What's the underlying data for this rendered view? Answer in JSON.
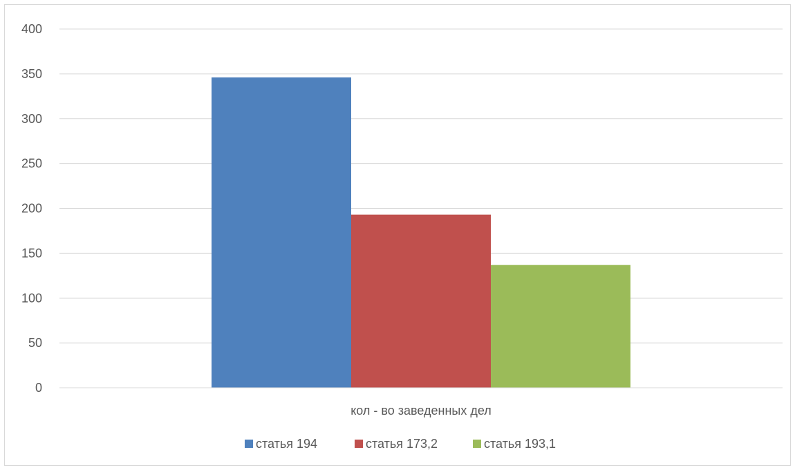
{
  "chart_data": {
    "type": "bar",
    "categories": [
      "кол - во заведенных дел"
    ],
    "series": [
      {
        "name": "статья 194",
        "values": [
          346
        ],
        "color": "#4f81bd"
      },
      {
        "name": "статья 173,2",
        "values": [
          193
        ],
        "color": "#c0504d"
      },
      {
        "name": "статья 193,1",
        "values": [
          137
        ],
        "color": "#9bbb59"
      }
    ],
    "ylim": [
      0,
      400
    ],
    "yticks": [
      "0",
      "50",
      "100",
      "150",
      "200",
      "250",
      "300",
      "350",
      "400"
    ],
    "grid": true,
    "legend": "bottom",
    "gridline_color": "#d9d9d9",
    "axis_color": "#d9d9d9"
  }
}
